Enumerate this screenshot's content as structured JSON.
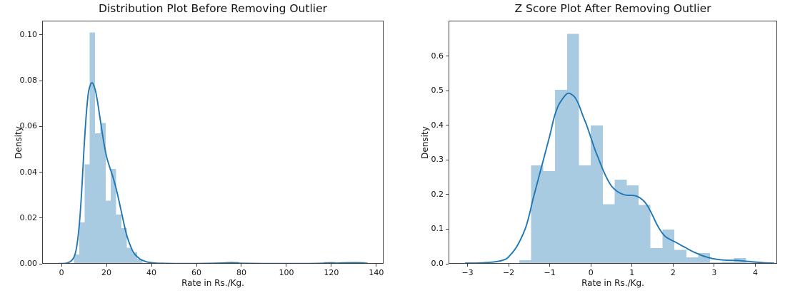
{
  "page": {
    "background": "#ffffff"
  },
  "colors": {
    "hist_fill": "#a8cbe2",
    "kde_line": "#2077b4",
    "spine": "#404040",
    "text": "#141414"
  },
  "chart_data": [
    {
      "type": "histogram+kde",
      "title": "Distribution Plot Before Removing Outlier",
      "xlabel": "Rate in Rs./Kg.",
      "ylabel": "Density",
      "xlim": [
        -8.6,
        143.2
      ],
      "ylim": [
        0,
        0.1062
      ],
      "grid": false,
      "legend": null,
      "xtick_values": [
        0,
        20,
        40,
        60,
        80,
        100,
        120,
        140
      ],
      "xtick_labels": [
        "0",
        "20",
        "40",
        "60",
        "80",
        "100",
        "120",
        "140"
      ],
      "ytick_values": [
        0.0,
        0.02,
        0.04,
        0.06,
        0.08,
        0.1
      ],
      "ytick_labels": [
        "0.00",
        "0.02",
        "0.04",
        "0.06",
        "0.08",
        "0.10"
      ],
      "bars": [
        [
          5.55,
          7.9,
          0.004
        ],
        [
          7.9,
          10.24,
          0.018
        ],
        [
          10.24,
          12.58,
          0.0435
        ],
        [
          12.58,
          14.93,
          0.101
        ],
        [
          14.93,
          17.27,
          0.057
        ],
        [
          17.27,
          19.62,
          0.0615
        ],
        [
          19.62,
          21.96,
          0.0275
        ],
        [
          21.96,
          24.3,
          0.0415
        ],
        [
          24.3,
          26.65,
          0.0215
        ],
        [
          26.65,
          28.99,
          0.0155
        ],
        [
          28.99,
          31.34,
          0.007
        ],
        [
          31.34,
          33.68,
          0.005
        ],
        [
          33.68,
          36.02,
          0.002
        ],
        [
          74.0,
          79.0,
          0.0008
        ],
        [
          116.5,
          122.0,
          0.0008
        ],
        [
          126.0,
          135.0,
          0.0008
        ]
      ],
      "kde": [
        [
          -1.5,
          0.0001
        ],
        [
          2,
          0.0002
        ],
        [
          4,
          0.001
        ],
        [
          5,
          0.002
        ],
        [
          6,
          0.004
        ],
        [
          7,
          0.009
        ],
        [
          8,
          0.018
        ],
        [
          9,
          0.032
        ],
        [
          10,
          0.05
        ],
        [
          11,
          0.065
        ],
        [
          12,
          0.075
        ],
        [
          13,
          0.0785
        ],
        [
          13.5,
          0.079
        ],
        [
          14,
          0.0787
        ],
        [
          15,
          0.076
        ],
        [
          16,
          0.071
        ],
        [
          17,
          0.0645
        ],
        [
          18,
          0.058
        ],
        [
          19,
          0.052
        ],
        [
          20,
          0.047
        ],
        [
          21,
          0.0435
        ],
        [
          22,
          0.0405
        ],
        [
          23,
          0.0375
        ],
        [
          24,
          0.034
        ],
        [
          25,
          0.03
        ],
        [
          26,
          0.0255
        ],
        [
          27,
          0.021
        ],
        [
          28,
          0.0165
        ],
        [
          29,
          0.0125
        ],
        [
          30,
          0.0095
        ],
        [
          31,
          0.007
        ],
        [
          32,
          0.005
        ],
        [
          33,
          0.0037
        ],
        [
          34,
          0.0028
        ],
        [
          35,
          0.002
        ],
        [
          36,
          0.0015
        ],
        [
          38,
          0.0008
        ],
        [
          40,
          0.0005
        ],
        [
          42,
          0.0003
        ],
        [
          45,
          0.0002
        ],
        [
          50,
          0.0001
        ],
        [
          60,
          0.0001
        ],
        [
          70,
          0.0003
        ],
        [
          75,
          0.0005
        ],
        [
          78,
          0.0004
        ],
        [
          80,
          0.0002
        ],
        [
          90,
          0.0001
        ],
        [
          100,
          0.0001
        ],
        [
          110,
          0.0001
        ],
        [
          115,
          0.0002
        ],
        [
          120,
          0.0004
        ],
        [
          122,
          0.0003
        ],
        [
          125,
          0.0004
        ],
        [
          130,
          0.0005
        ],
        [
          133,
          0.0004
        ],
        [
          136,
          0.0002
        ]
      ]
    },
    {
      "type": "histogram+kde",
      "title": "Z Score Plot After Removing Outlier",
      "xlabel": "Rate in Rs./Kg.",
      "ylabel": "Density",
      "xlim": [
        -3.46,
        4.53
      ],
      "ylim": [
        0,
        0.703
      ],
      "grid": false,
      "legend": null,
      "xtick_values": [
        -3,
        -2,
        -1,
        0,
        1,
        2,
        3,
        4
      ],
      "xtick_labels": [
        "−3",
        "−2",
        "−1",
        "0",
        "1",
        "2",
        "3",
        "4"
      ],
      "ytick_values": [
        0.0,
        0.1,
        0.2,
        0.3,
        0.4,
        0.5,
        0.6
      ],
      "ytick_labels": [
        "0.0",
        "0.1",
        "0.2",
        "0.3",
        "0.4",
        "0.5",
        "0.6"
      ],
      "bars": [
        [
          -1.74,
          -1.45,
          0.01
        ],
        [
          -1.45,
          -1.16,
          0.284
        ],
        [
          -1.16,
          -0.87,
          0.268
        ],
        [
          -0.87,
          -0.58,
          0.503
        ],
        [
          -0.58,
          -0.29,
          0.665
        ],
        [
          -0.29,
          0.0,
          0.285
        ],
        [
          0.0,
          0.29,
          0.4
        ],
        [
          0.29,
          0.58,
          0.172
        ],
        [
          0.58,
          0.87,
          0.243
        ],
        [
          0.87,
          1.16,
          0.227
        ],
        [
          1.16,
          1.45,
          0.17
        ],
        [
          1.45,
          1.74,
          0.045
        ],
        [
          1.74,
          2.03,
          0.099
        ],
        [
          2.03,
          2.32,
          0.04
        ],
        [
          2.32,
          2.61,
          0.019
        ],
        [
          2.61,
          2.9,
          0.031
        ],
        [
          2.9,
          3.19,
          0.004
        ],
        [
          3.19,
          3.48,
          0.006
        ],
        [
          3.48,
          3.77,
          0.017
        ],
        [
          3.77,
          4.06,
          0.003
        ]
      ],
      "kde": [
        [
          -3.05,
          0.002
        ],
        [
          -2.8,
          0.002
        ],
        [
          -2.6,
          0.003
        ],
        [
          -2.3,
          0.006
        ],
        [
          -2.1,
          0.012
        ],
        [
          -2.0,
          0.02
        ],
        [
          -1.8,
          0.05
        ],
        [
          -1.6,
          0.1
        ],
        [
          -1.5,
          0.14
        ],
        [
          -1.4,
          0.19
        ],
        [
          -1.2,
          0.28
        ],
        [
          -1.0,
          0.37
        ],
        [
          -0.9,
          0.42
        ],
        [
          -0.8,
          0.455
        ],
        [
          -0.7,
          0.475
        ],
        [
          -0.6,
          0.49
        ],
        [
          -0.55,
          0.493
        ],
        [
          -0.5,
          0.492
        ],
        [
          -0.4,
          0.483
        ],
        [
          -0.3,
          0.462
        ],
        [
          -0.2,
          0.43
        ],
        [
          -0.1,
          0.4
        ],
        [
          0.0,
          0.365
        ],
        [
          0.1,
          0.33
        ],
        [
          0.2,
          0.3
        ],
        [
          0.3,
          0.27
        ],
        [
          0.4,
          0.245
        ],
        [
          0.5,
          0.225
        ],
        [
          0.6,
          0.213
        ],
        [
          0.7,
          0.205
        ],
        [
          0.8,
          0.2
        ],
        [
          0.9,
          0.198
        ],
        [
          1.0,
          0.198
        ],
        [
          1.1,
          0.196
        ],
        [
          1.2,
          0.19
        ],
        [
          1.3,
          0.18
        ],
        [
          1.4,
          0.163
        ],
        [
          1.5,
          0.14
        ],
        [
          1.6,
          0.115
        ],
        [
          1.7,
          0.095
        ],
        [
          1.8,
          0.08
        ],
        [
          1.9,
          0.072
        ],
        [
          2.0,
          0.066
        ],
        [
          2.1,
          0.06
        ],
        [
          2.2,
          0.053
        ],
        [
          2.3,
          0.047
        ],
        [
          2.4,
          0.04
        ],
        [
          2.5,
          0.034
        ],
        [
          2.6,
          0.029
        ],
        [
          2.7,
          0.024
        ],
        [
          2.8,
          0.02
        ],
        [
          3.0,
          0.014
        ],
        [
          3.2,
          0.011
        ],
        [
          3.4,
          0.01
        ],
        [
          3.6,
          0.0095
        ],
        [
          3.8,
          0.007
        ],
        [
          4.0,
          0.005
        ],
        [
          4.2,
          0.003
        ],
        [
          4.4,
          0.002
        ],
        [
          4.45,
          0.002
        ]
      ]
    }
  ]
}
